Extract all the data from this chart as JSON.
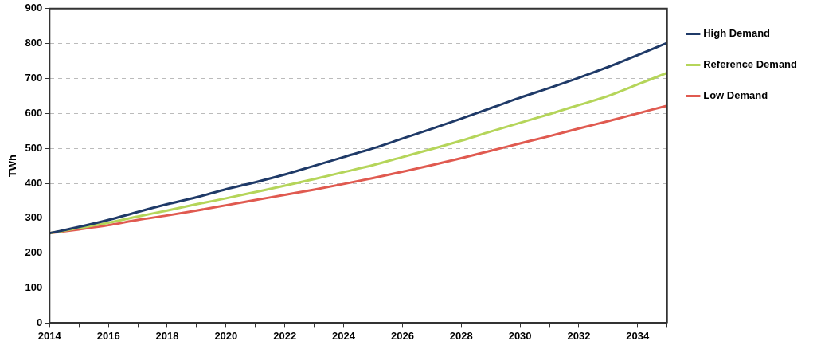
{
  "chart_data": {
    "type": "line",
    "ylabel": "TWh",
    "x": [
      2014,
      2015,
      2016,
      2017,
      2018,
      2019,
      2020,
      2021,
      2022,
      2023,
      2024,
      2025,
      2026,
      2027,
      2028,
      2029,
      2030,
      2031,
      2032,
      2033,
      2034,
      2035
    ],
    "series": [
      {
        "name": "High Demand",
        "color": "#1f3a68",
        "values": [
          257,
          275,
          295,
          318,
          340,
          360,
          383,
          403,
          425,
          450,
          475,
          500,
          528,
          556,
          585,
          615,
          645,
          673,
          702,
          733,
          767,
          802
        ]
      },
      {
        "name": "Reference Demand",
        "color": "#b5d55a",
        "values": [
          257,
          272,
          287,
          305,
          322,
          340,
          357,
          375,
          393,
          412,
          432,
          452,
          475,
          498,
          522,
          548,
          573,
          598,
          624,
          650,
          683,
          716
        ]
      },
      {
        "name": "Low Demand",
        "color": "#e05a50",
        "values": [
          257,
          268,
          280,
          295,
          308,
          322,
          337,
          352,
          367,
          382,
          398,
          415,
          433,
          452,
          472,
          493,
          514,
          535,
          557,
          578,
          600,
          622
        ]
      }
    ],
    "xlim": [
      2014,
      2035
    ],
    "xticks": [
      2014,
      {
        "value": 2015,
        "label": null
      },
      2016,
      {
        "value": 2017,
        "label": null
      },
      2018,
      {
        "value": 2019,
        "label": null
      },
      2020,
      {
        "value": 2021,
        "label": null
      },
      2022,
      {
        "value": 2023,
        "label": null
      },
      2024,
      {
        "value": 2025,
        "label": null
      },
      2026,
      {
        "value": 2027,
        "label": null
      },
      2028,
      {
        "value": 2029,
        "label": null
      },
      2030,
      {
        "value": 2031,
        "label": null
      },
      2032,
      {
        "value": 2033,
        "label": null
      },
      2034,
      {
        "value": 2035,
        "label": null
      }
    ],
    "ylim": [
      0,
      900
    ],
    "yticks": [
      0,
      100,
      200,
      300,
      400,
      500,
      600,
      700,
      800,
      900
    ],
    "grid": "y",
    "legend": "right",
    "marker": "none",
    "line_style": "solid"
  }
}
